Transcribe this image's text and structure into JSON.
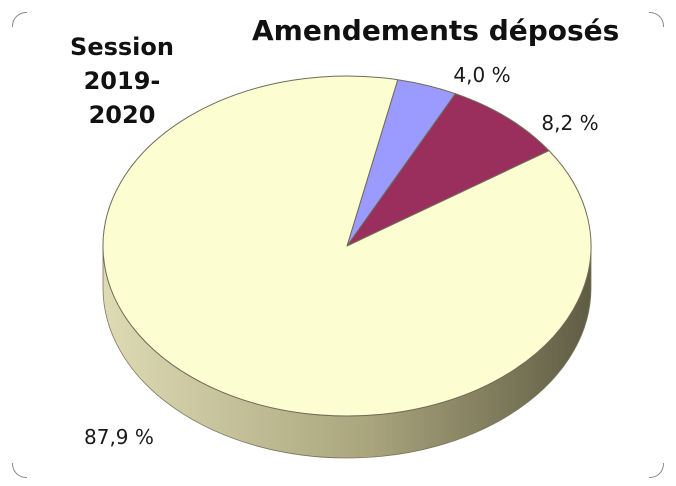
{
  "chart_data": {
    "type": "pie",
    "title": "Amendements déposés",
    "subtitle": "Session 2019-2020",
    "slices": [
      {
        "label": "87,9 %",
        "value": 87.9,
        "color": "#fdfdd2",
        "side_color": "#b8b48e"
      },
      {
        "label": "4,0 %",
        "value": 4.0,
        "color": "#9b9bff",
        "side_color": "#6d6dc0"
      },
      {
        "label": "8,2 %",
        "value": 8.2,
        "color": "#9a2f5e",
        "side_color": "#6a1f40"
      }
    ],
    "style": "3d-pie"
  },
  "header": {
    "session_line1": "Session",
    "session_line2": "2019-2020",
    "title": "Amendements déposés"
  }
}
